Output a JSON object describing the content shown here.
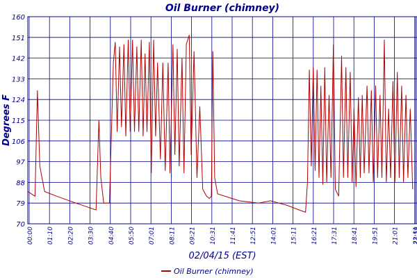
{
  "chart_data": {
    "type": "line",
    "title": "Oil Burner (chimney)",
    "xlabel": "02/04/15 (EST)",
    "ylabel": "Degrees F",
    "x_tick_labels": [
      "00:00",
      "01:10",
      "02:20",
      "03:30",
      "04:40",
      "05:50",
      "07:01",
      "08:11",
      "09:21",
      "10:31",
      "11:41",
      "12:51",
      "14:01",
      "15:11",
      "16:21",
      "17:31",
      "18:41",
      "19:51",
      "21:01",
      "22:11",
      "23:21",
      "23:59"
    ],
    "y_tick_labels": [
      "70",
      "79",
      "88",
      "97",
      "106",
      "115",
      "124",
      "133",
      "142",
      "151",
      "160"
    ],
    "ylim": [
      70,
      160
    ],
    "grid": true,
    "legend_position": "bottom-center",
    "series": [
      {
        "name": "Oil Burner (chimney)",
        "color": "#b00000",
        "points": [
          [
            0,
            84
          ],
          [
            15,
            82
          ],
          [
            20,
            128
          ],
          [
            25,
            95
          ],
          [
            35,
            84
          ],
          [
            60,
            82
          ],
          [
            100,
            79
          ],
          [
            142,
            76
          ],
          [
            148,
            115
          ],
          [
            152,
            90
          ],
          [
            158,
            79
          ],
          [
            170,
            79
          ],
          [
            178,
            140
          ],
          [
            182,
            149
          ],
          [
            186,
            110
          ],
          [
            191,
            147
          ],
          [
            195,
            112
          ],
          [
            200,
            148
          ],
          [
            204,
            108
          ],
          [
            209,
            150
          ],
          [
            213,
            110
          ],
          [
            218,
            150
          ],
          [
            222,
            110
          ],
          [
            227,
            147
          ],
          [
            231,
            110
          ],
          [
            236,
            150
          ],
          [
            240,
            108
          ],
          [
            244,
            144
          ],
          [
            248,
            110
          ],
          [
            253,
            149
          ],
          [
            257,
            92
          ],
          [
            262,
            150
          ],
          [
            266,
            108
          ],
          [
            270,
            140
          ],
          [
            276,
            98
          ],
          [
            281,
            140
          ],
          [
            286,
            93
          ],
          [
            292,
            140
          ],
          [
            296,
            92
          ],
          [
            302,
            148
          ],
          [
            306,
            100
          ],
          [
            311,
            146
          ],
          [
            315,
            95
          ],
          [
            321,
            142
          ],
          [
            325,
            92
          ],
          [
            330,
            148
          ],
          [
            336,
            152
          ],
          [
            340,
            100
          ],
          [
            346,
            145
          ],
          [
            352,
            90
          ],
          [
            358,
            121
          ],
          [
            364,
            85
          ],
          [
            372,
            82
          ],
          [
            378,
            81
          ],
          [
            382,
            82
          ],
          [
            385,
            145
          ],
          [
            389,
            90
          ],
          [
            395,
            83
          ],
          [
            440,
            80
          ],
          [
            480,
            79
          ],
          [
            505,
            80
          ],
          [
            540,
            78
          ],
          [
            565,
            76
          ],
          [
            578,
            75
          ],
          [
            582,
            88
          ],
          [
            586,
            137
          ],
          [
            590,
            95
          ],
          [
            594,
            138
          ],
          [
            598,
            93
          ],
          [
            602,
            137
          ],
          [
            606,
            90
          ],
          [
            610,
            130
          ],
          [
            614,
            87
          ],
          [
            618,
            138
          ],
          [
            622,
            88
          ],
          [
            627,
            126
          ],
          [
            631,
            90
          ],
          [
            636,
            148
          ],
          [
            640,
            85
          ],
          [
            647,
            82
          ],
          [
            653,
            143
          ],
          [
            657,
            90
          ],
          [
            662,
            138
          ],
          [
            666,
            90
          ],
          [
            671,
            136
          ],
          [
            675,
            88
          ],
          [
            679,
            120
          ],
          [
            683,
            86
          ],
          [
            688,
            125
          ],
          [
            692,
            90
          ],
          [
            696,
            126
          ],
          [
            700,
            92
          ],
          [
            706,
            130
          ],
          [
            710,
            92
          ],
          [
            715,
            128
          ],
          [
            719,
            88
          ],
          [
            724,
            130
          ],
          [
            728,
            90
          ],
          [
            733,
            126
          ],
          [
            737,
            90
          ],
          [
            742,
            150
          ],
          [
            746,
            88
          ],
          [
            751,
            120
          ],
          [
            755,
            90
          ],
          [
            760,
            132
          ],
          [
            764,
            88
          ],
          [
            769,
            136
          ],
          [
            773,
            90
          ],
          [
            778,
            130
          ],
          [
            782,
            88
          ],
          [
            787,
            126
          ],
          [
            791,
            90
          ],
          [
            796,
            120
          ],
          [
            801,
            85
          ]
        ]
      }
    ]
  }
}
